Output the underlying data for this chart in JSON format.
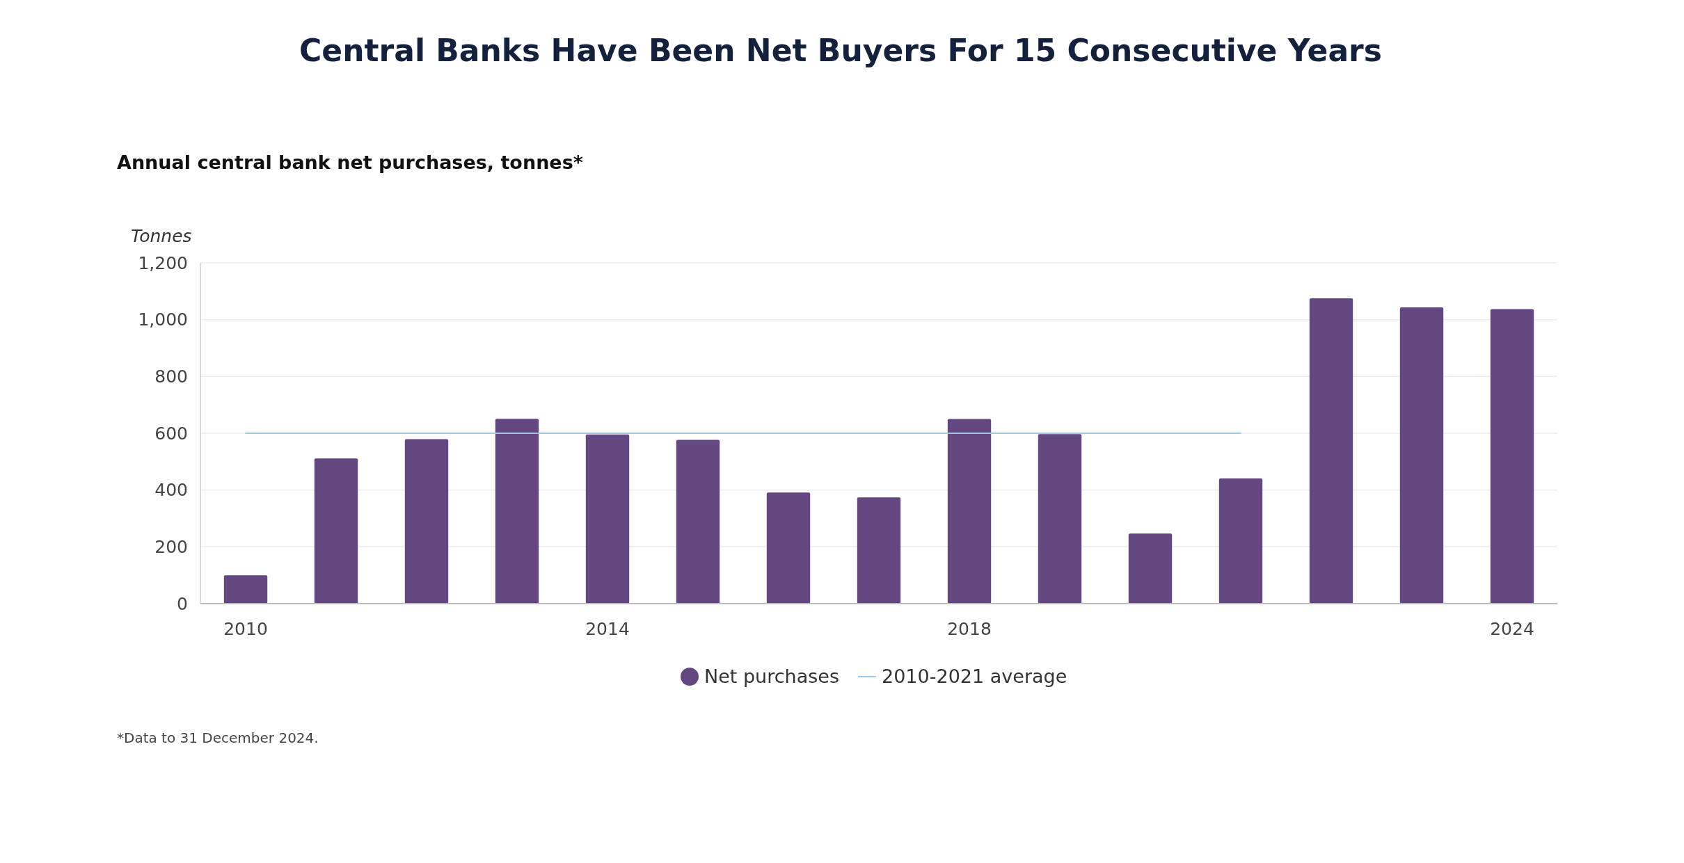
{
  "chart_data": {
    "type": "bar",
    "title": "Central Banks Have Been Net Buyers For 15 Consecutive Years",
    "subtitle": "Annual central bank net purchases, tonnes*",
    "ylabel": "Tonnes",
    "categories": [
      "2010",
      null,
      null,
      null,
      "2014",
      null,
      null,
      null,
      "2018",
      null,
      null,
      null,
      null,
      null,
      "2024"
    ],
    "series": [
      {
        "name": "Net purchases",
        "color": "#634780",
        "values": [
          100,
          511,
          579,
          651,
          596,
          577,
          391,
          374,
          650,
          597,
          247,
          441,
          1075,
          1043,
          1037
        ]
      },
      {
        "name": "2010-2021 average",
        "type": "line",
        "color": "#9cc8e8",
        "values": [
          600,
          600,
          600,
          600,
          600,
          600,
          600,
          600,
          600,
          600,
          600,
          600,
          null,
          null,
          null
        ]
      }
    ],
    "ylim": [
      0,
      1200
    ],
    "yticks": [
      0,
      200,
      400,
      600,
      800,
      {
        "value": 1000,
        "label": "1,000"
      },
      {
        "value": 1200,
        "label": "1,200"
      }
    ],
    "grid": "y",
    "legend": "bottom",
    "annotations": [
      "*Data to 31 December 2024."
    ]
  }
}
